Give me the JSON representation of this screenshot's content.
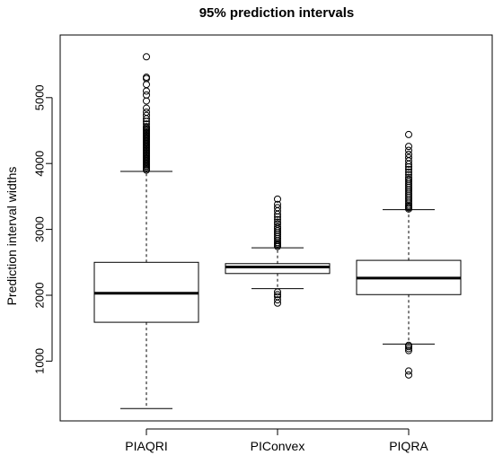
{
  "chart_data": {
    "type": "boxplot",
    "title": "95% prediction intervals",
    "xlabel": "",
    "ylabel": "Prediction interval widths",
    "ylim": [
      200,
      5700
    ],
    "yticks": [
      1000,
      2000,
      3000,
      4000,
      5000
    ],
    "grid": false,
    "legend": "none",
    "categories": [
      "PIAQRI",
      "PIConvex",
      "PIQRA"
    ],
    "boxes": [
      {
        "category": "PIAQRI",
        "whisker_low": 280,
        "q1": 1590,
        "median": 2030,
        "q3": 2500,
        "whisker_high": 3880,
        "outliers": [
          3900,
          3920,
          3940,
          3960,
          3980,
          4000,
          4020,
          4040,
          4060,
          4080,
          4100,
          4120,
          4140,
          4160,
          4180,
          4200,
          4220,
          4240,
          4260,
          4280,
          4300,
          4320,
          4340,
          4360,
          4380,
          4400,
          4420,
          4440,
          4460,
          4480,
          4500,
          4520,
          4540,
          4560,
          4600,
          4640,
          4680,
          4730,
          4780,
          4840,
          4950,
          5040,
          5100,
          5200,
          5290,
          5310,
          5620
        ]
      },
      {
        "category": "PIConvex",
        "whisker_low": 2100,
        "q1": 2330,
        "median": 2430,
        "q3": 2480,
        "whisker_high": 2720,
        "outliers": [
          1880,
          1930,
          1980,
          2010,
          2050,
          2740,
          2760,
          2780,
          2800,
          2830,
          2860,
          2890,
          2920,
          2950,
          2980,
          3010,
          3040,
          3080,
          3110,
          3150,
          3190,
          3230,
          3280,
          3330,
          3380,
          3460
        ]
      },
      {
        "category": "PIQRA",
        "whisker_low": 1260,
        "q1": 2010,
        "median": 2260,
        "q3": 2530,
        "whisker_high": 3300,
        "outliers": [
          790,
          850,
          1160,
          1190,
          1220,
          1240,
          3310,
          3330,
          3350,
          3370,
          3400,
          3430,
          3460,
          3490,
          3520,
          3550,
          3580,
          3610,
          3640,
          3670,
          3700,
          3730,
          3760,
          3790,
          3830,
          3870,
          3910,
          3950,
          3990,
          4040,
          4090,
          4140,
          4200,
          4260,
          4440
        ]
      }
    ]
  }
}
